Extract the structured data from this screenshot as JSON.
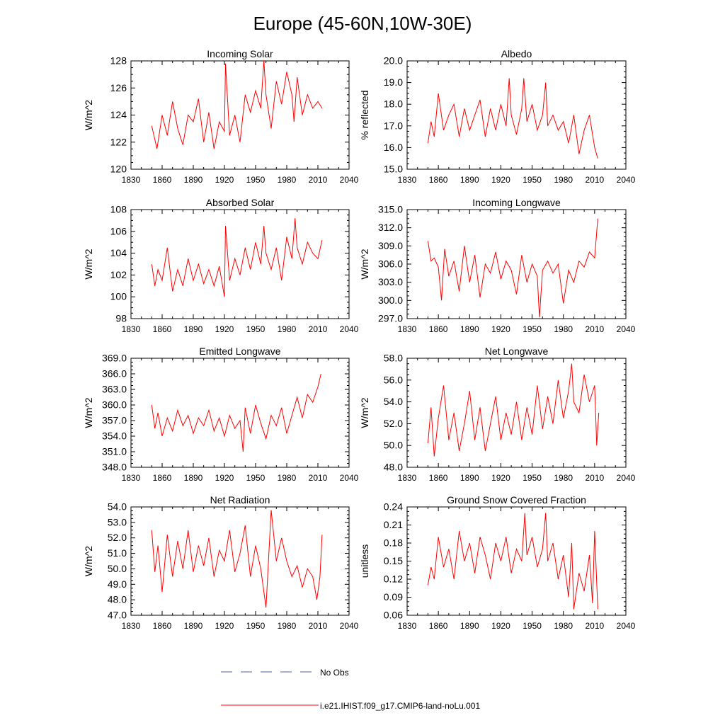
{
  "figure_title": "Europe (45-60N,10W-30E)",
  "legend": [
    {
      "label": "No Obs",
      "color": "#4b5fa8",
      "style": "dashed"
    },
    {
      "label": "i.e21.IHIST.f09_g17.CMIP6-land-noLu.001",
      "color": "#ff0000",
      "style": "solid"
    }
  ],
  "chart_data": [
    {
      "type": "line",
      "title": "Incoming Solar",
      "ylabel": "W/m^2",
      "xlim": [
        1830,
        2040
      ],
      "xticks": [
        1830,
        1860,
        1890,
        1920,
        1950,
        1980,
        2010,
        2040
      ],
      "ylim": [
        120,
        128
      ],
      "yticks": [
        "120",
        "122",
        "124",
        "126",
        "128"
      ],
      "series": [
        {
          "color": "#ff0000",
          "x": [
            1850,
            1855,
            1860,
            1865,
            1870,
            1875,
            1880,
            1885,
            1890,
            1895,
            1900,
            1905,
            1910,
            1915,
            1920,
            1921,
            1925,
            1930,
            1935,
            1940,
            1945,
            1950,
            1955,
            1958,
            1960,
            1965,
            1970,
            1975,
            1980,
            1985,
            1987,
            1990,
            1995,
            2000,
            2005,
            2010,
            2014
          ],
          "y": [
            123.2,
            121.5,
            124.0,
            122.5,
            125.0,
            123.0,
            121.8,
            124.0,
            123.5,
            125.2,
            122.0,
            124.2,
            121.5,
            123.5,
            122.8,
            127.8,
            122.5,
            124.0,
            122.0,
            125.5,
            124.2,
            125.8,
            124.5,
            128.0,
            125.5,
            123.0,
            126.5,
            124.8,
            127.2,
            125.5,
            123.5,
            126.8,
            124.0,
            125.5,
            124.5,
            125.0,
            124.5
          ]
        }
      ]
    },
    {
      "type": "line",
      "title": "Albedo",
      "ylabel": "% reflected",
      "xlim": [
        1830,
        2040
      ],
      "xticks": [
        1830,
        1860,
        1890,
        1920,
        1950,
        1980,
        2010,
        2040
      ],
      "ylim": [
        15.0,
        20.0
      ],
      "yticks": [
        "15.0",
        "16.0",
        "17.0",
        "18.0",
        "19.0",
        "20.0"
      ],
      "series": [
        {
          "color": "#ff0000",
          "x": [
            1850,
            1853,
            1856,
            1860,
            1865,
            1870,
            1875,
            1880,
            1885,
            1890,
            1895,
            1900,
            1905,
            1910,
            1915,
            1920,
            1925,
            1928,
            1930,
            1935,
            1940,
            1942,
            1945,
            1950,
            1955,
            1960,
            1963,
            1965,
            1970,
            1975,
            1980,
            1985,
            1990,
            1995,
            2000,
            2005,
            2010,
            2013
          ],
          "y": [
            16.2,
            17.2,
            16.5,
            18.5,
            16.8,
            17.5,
            18.0,
            16.5,
            17.8,
            16.8,
            17.5,
            18.2,
            16.5,
            17.8,
            16.8,
            18.0,
            17.0,
            19.2,
            17.5,
            16.6,
            17.8,
            19.2,
            17.2,
            18.0,
            16.8,
            17.5,
            19.0,
            17.0,
            17.5,
            16.8,
            17.2,
            16.2,
            17.5,
            15.7,
            16.8,
            17.5,
            16.0,
            15.5
          ]
        }
      ]
    },
    {
      "type": "line",
      "title": "Absorbed Solar",
      "ylabel": "W/m^2",
      "xlim": [
        1830,
        2040
      ],
      "xticks": [
        1830,
        1860,
        1890,
        1920,
        1950,
        1980,
        2010,
        2040
      ],
      "ylim": [
        98,
        108
      ],
      "yticks": [
        "98",
        "100",
        "102",
        "104",
        "106",
        "108"
      ],
      "series": [
        {
          "color": "#ff0000",
          "x": [
            1850,
            1853,
            1856,
            1860,
            1865,
            1870,
            1875,
            1880,
            1885,
            1890,
            1895,
            1900,
            1905,
            1910,
            1915,
            1920,
            1921,
            1925,
            1930,
            1935,
            1940,
            1945,
            1950,
            1955,
            1958,
            1960,
            1965,
            1970,
            1975,
            1980,
            1985,
            1988,
            1990,
            1995,
            2000,
            2005,
            2010,
            2014
          ],
          "y": [
            103.0,
            101.0,
            102.5,
            101.5,
            104.5,
            100.5,
            102.5,
            101.0,
            103.5,
            101.5,
            103.0,
            101.2,
            102.5,
            101.0,
            102.8,
            100.0,
            106.5,
            101.5,
            103.5,
            102.0,
            104.5,
            102.5,
            105.0,
            103.0,
            106.5,
            104.0,
            102.5,
            104.5,
            101.5,
            105.5,
            103.5,
            107.2,
            104.5,
            103.0,
            105.0,
            104.0,
            103.5,
            105.2
          ]
        }
      ]
    },
    {
      "type": "line",
      "title": "Incoming Longwave",
      "ylabel": "W/m^2",
      "xlim": [
        1830,
        2040
      ],
      "xticks": [
        1830,
        1860,
        1890,
        1920,
        1950,
        1980,
        2010,
        2040
      ],
      "ylim": [
        297.0,
        315.0
      ],
      "yticks": [
        "297.0",
        "300.0",
        "303.0",
        "306.0",
        "309.0",
        "312.0",
        "315.0"
      ],
      "series": [
        {
          "color": "#ff0000",
          "x": [
            1850,
            1853,
            1856,
            1860,
            1863,
            1866,
            1870,
            1875,
            1880,
            1885,
            1890,
            1895,
            1900,
            1905,
            1910,
            1915,
            1920,
            1925,
            1930,
            1935,
            1940,
            1945,
            1950,
            1955,
            1957,
            1960,
            1965,
            1970,
            1975,
            1980,
            1985,
            1990,
            1995,
            2000,
            2005,
            2010,
            2013
          ],
          "y": [
            309.8,
            306.5,
            307.0,
            305.5,
            300.0,
            308.5,
            304.0,
            306.5,
            301.5,
            309.0,
            303.0,
            307.5,
            300.5,
            306.0,
            304.5,
            308.0,
            303.5,
            306.5,
            305.0,
            301.0,
            307.5,
            303.0,
            306.0,
            304.0,
            297.2,
            305.0,
            306.5,
            304.5,
            306.0,
            299.5,
            305.0,
            303.0,
            306.5,
            305.5,
            308.0,
            307.0,
            313.5
          ]
        }
      ]
    },
    {
      "type": "line",
      "title": "Emitted Longwave",
      "ylabel": "W/m^2",
      "xlim": [
        1830,
        2040
      ],
      "xticks": [
        1830,
        1860,
        1890,
        1920,
        1950,
        1980,
        2010,
        2040
      ],
      "ylim": [
        348.0,
        369.0
      ],
      "yticks": [
        "348.0",
        "351.0",
        "354.0",
        "357.0",
        "360.0",
        "363.0",
        "366.0",
        "369.0"
      ],
      "series": [
        {
          "color": "#ff0000",
          "x": [
            1850,
            1853,
            1856,
            1860,
            1865,
            1870,
            1875,
            1880,
            1885,
            1890,
            1895,
            1900,
            1905,
            1910,
            1915,
            1920,
            1925,
            1930,
            1935,
            1938,
            1940,
            1945,
            1950,
            1955,
            1960,
            1965,
            1970,
            1975,
            1980,
            1985,
            1990,
            1995,
            2000,
            2005,
            2010,
            2013
          ],
          "y": [
            360.0,
            355.5,
            358.5,
            354.0,
            357.5,
            355.0,
            359.0,
            356.0,
            358.0,
            354.5,
            357.5,
            356.0,
            359.0,
            355.0,
            357.5,
            354.0,
            358.0,
            355.5,
            357.0,
            351.0,
            359.5,
            354.5,
            360.0,
            356.5,
            353.5,
            358.0,
            356.0,
            359.5,
            354.5,
            358.0,
            361.5,
            357.5,
            362.0,
            360.5,
            363.5,
            366.0
          ]
        }
      ]
    },
    {
      "type": "line",
      "title": "Net Longwave",
      "ylabel": "W/m^2",
      "xlim": [
        1830,
        2040
      ],
      "xticks": [
        1830,
        1860,
        1890,
        1920,
        1950,
        1980,
        2010,
        2040
      ],
      "ylim": [
        48.0,
        58.0
      ],
      "yticks": [
        "48.0",
        "50.0",
        "52.0",
        "54.0",
        "56.0",
        "58.0"
      ],
      "series": [
        {
          "color": "#ff0000",
          "x": [
            1850,
            1853,
            1856,
            1860,
            1865,
            1870,
            1875,
            1880,
            1885,
            1890,
            1895,
            1900,
            1905,
            1910,
            1915,
            1920,
            1925,
            1930,
            1935,
            1940,
            1945,
            1950,
            1955,
            1960,
            1965,
            1970,
            1975,
            1980,
            1985,
            1988,
            1990,
            1995,
            2000,
            2005,
            2010,
            2012,
            2014
          ],
          "y": [
            50.2,
            53.5,
            49.0,
            52.5,
            55.5,
            50.5,
            53.0,
            49.5,
            52.0,
            55.0,
            50.5,
            53.5,
            49.5,
            52.0,
            54.5,
            50.5,
            53.0,
            51.0,
            54.0,
            50.5,
            53.5,
            51.0,
            55.5,
            51.5,
            54.5,
            52.0,
            56.0,
            52.5,
            55.0,
            57.5,
            54.0,
            53.0,
            56.5,
            54.0,
            55.5,
            50.0,
            53.0
          ]
        }
      ]
    },
    {
      "type": "line",
      "title": "Net Radiation",
      "ylabel": "W/m^2",
      "xlim": [
        1830,
        2040
      ],
      "xticks": [
        1830,
        1860,
        1890,
        1920,
        1950,
        1980,
        2010,
        2040
      ],
      "ylim": [
        47.0,
        54.0
      ],
      "yticks": [
        "47.0",
        "48.0",
        "49.0",
        "50.0",
        "51.0",
        "52.0",
        "53.0",
        "54.0"
      ],
      "series": [
        {
          "color": "#ff0000",
          "x": [
            1850,
            1853,
            1856,
            1860,
            1865,
            1870,
            1875,
            1880,
            1885,
            1890,
            1895,
            1900,
            1905,
            1910,
            1915,
            1920,
            1925,
            1930,
            1935,
            1940,
            1945,
            1950,
            1955,
            1960,
            1965,
            1970,
            1975,
            1980,
            1985,
            1990,
            1995,
            2000,
            2005,
            2009,
            2012,
            2014
          ],
          "y": [
            52.5,
            49.8,
            51.5,
            48.5,
            52.2,
            49.5,
            51.8,
            50.0,
            52.5,
            49.8,
            51.5,
            50.2,
            52.0,
            49.5,
            51.2,
            50.5,
            52.5,
            49.8,
            51.0,
            52.8,
            49.5,
            51.5,
            50.0,
            47.5,
            53.8,
            50.5,
            52.0,
            50.5,
            49.5,
            50.2,
            48.8,
            50.0,
            49.5,
            48.0,
            49.5,
            52.2
          ]
        }
      ]
    },
    {
      "type": "line",
      "title": "Ground Snow Covered Fraction",
      "ylabel": "unitless",
      "xlim": [
        1830,
        2040
      ],
      "xticks": [
        1830,
        1860,
        1890,
        1920,
        1950,
        1980,
        2010,
        2040
      ],
      "ylim": [
        0.06,
        0.24
      ],
      "yticks": [
        "0.06",
        "0.09",
        "0.12",
        "0.15",
        "0.18",
        "0.21",
        "0.24"
      ],
      "series": [
        {
          "color": "#ff0000",
          "x": [
            1850,
            1853,
            1856,
            1860,
            1865,
            1870,
            1875,
            1880,
            1885,
            1890,
            1895,
            1900,
            1905,
            1910,
            1915,
            1920,
            1925,
            1930,
            1935,
            1940,
            1943,
            1945,
            1950,
            1955,
            1960,
            1963,
            1965,
            1970,
            1975,
            1980,
            1985,
            1988,
            1990,
            1995,
            2000,
            2005,
            2008,
            2010,
            2013
          ],
          "y": [
            0.11,
            0.14,
            0.12,
            0.19,
            0.14,
            0.17,
            0.12,
            0.2,
            0.15,
            0.18,
            0.13,
            0.19,
            0.16,
            0.12,
            0.18,
            0.15,
            0.19,
            0.13,
            0.17,
            0.15,
            0.23,
            0.16,
            0.19,
            0.14,
            0.17,
            0.23,
            0.15,
            0.18,
            0.12,
            0.16,
            0.09,
            0.18,
            0.07,
            0.13,
            0.1,
            0.16,
            0.08,
            0.2,
            0.07
          ]
        }
      ]
    }
  ]
}
